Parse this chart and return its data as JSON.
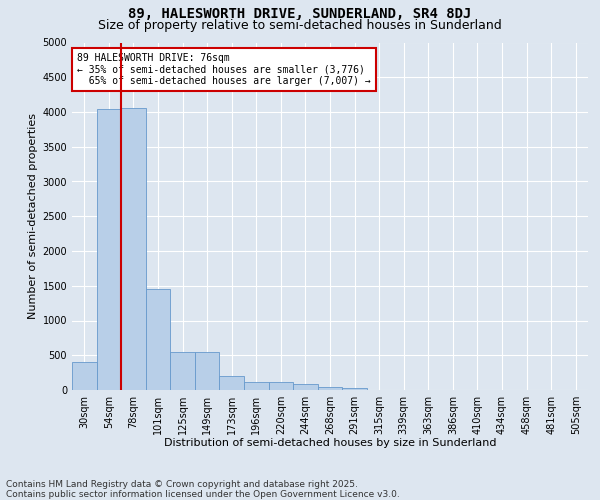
{
  "title": "89, HALESWORTH DRIVE, SUNDERLAND, SR4 8DJ",
  "subtitle": "Size of property relative to semi-detached houses in Sunderland",
  "xlabel": "Distribution of semi-detached houses by size in Sunderland",
  "ylabel": "Number of semi-detached properties",
  "categories": [
    "30sqm",
    "54sqm",
    "78sqm",
    "101sqm",
    "125sqm",
    "149sqm",
    "173sqm",
    "196sqm",
    "220sqm",
    "244sqm",
    "268sqm",
    "291sqm",
    "315sqm",
    "339sqm",
    "363sqm",
    "386sqm",
    "410sqm",
    "434sqm",
    "458sqm",
    "481sqm",
    "505sqm"
  ],
  "bar_heights": [
    400,
    4050,
    4060,
    1450,
    540,
    540,
    200,
    120,
    120,
    80,
    50,
    30,
    0,
    0,
    0,
    0,
    0,
    0,
    0,
    0,
    0
  ],
  "bar_color": "#b8cfe8",
  "bar_edge_color": "#6699cc",
  "vertical_line_color": "#cc0000",
  "ylim": [
    0,
    5000
  ],
  "yticks": [
    0,
    500,
    1000,
    1500,
    2000,
    2500,
    3000,
    3500,
    4000,
    4500,
    5000
  ],
  "annotation_text": "89 HALESWORTH DRIVE: 76sqm\n← 35% of semi-detached houses are smaller (3,776)\n  65% of semi-detached houses are larger (7,007) →",
  "annotation_box_color": "#ffffff",
  "annotation_box_edge_color": "#cc0000",
  "footer_line1": "Contains HM Land Registry data © Crown copyright and database right 2025.",
  "footer_line2": "Contains public sector information licensed under the Open Government Licence v3.0.",
  "bg_color": "#dde6f0",
  "grid_color": "#ffffff",
  "title_fontsize": 10,
  "subtitle_fontsize": 9,
  "axis_label_fontsize": 8,
  "tick_fontsize": 7,
  "annotation_fontsize": 7,
  "footer_fontsize": 6.5
}
